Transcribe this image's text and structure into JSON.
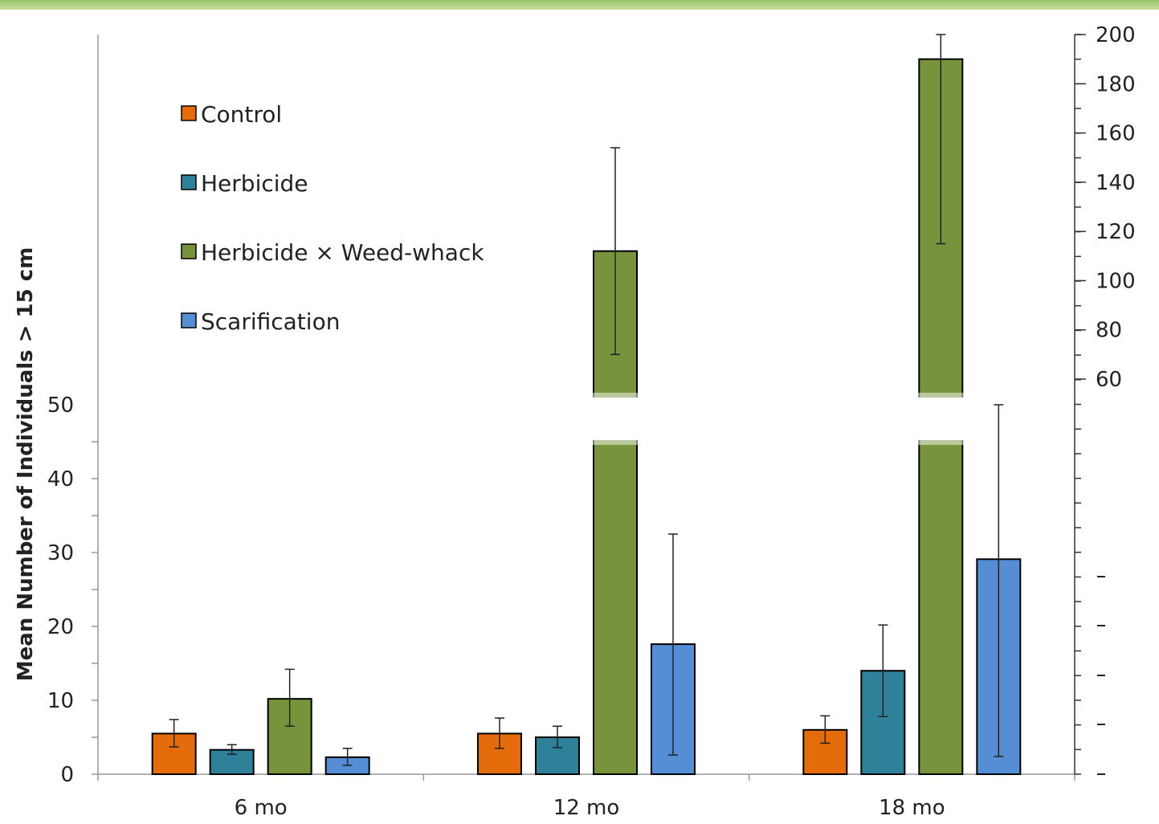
{
  "chart_data": {
    "type": "bar",
    "title": "",
    "ylabel": "Mean Number of Individuals > 15 cm",
    "xlabel": "",
    "categories": [
      "6 mo",
      "12 mo",
      "18 mo"
    ],
    "series": [
      {
        "name": "Control",
        "color": "#e46c0a",
        "values": [
          5.5,
          5.5,
          6.0
        ],
        "err_low": [
          3.7,
          3.5,
          4.2
        ],
        "err_high": [
          7.4,
          7.6,
          7.9
        ]
      },
      {
        "name": "Herbicide",
        "color": "#2e8199",
        "values": [
          3.3,
          5.0,
          14.0
        ],
        "err_low": [
          2.7,
          3.6,
          7.8
        ],
        "err_high": [
          4.0,
          6.5,
          20.2
        ]
      },
      {
        "name": "Herbicide × Weed-whack",
        "color": "#77933c",
        "values": [
          10.2,
          112,
          190
        ],
        "err_low": [
          6.5,
          70,
          115
        ],
        "err_high": [
          14.2,
          154,
          200
        ]
      },
      {
        "name": "Scarification",
        "color": "#558ed5",
        "values": [
          2.3,
          17.6,
          29.1
        ],
        "err_low": [
          1.2,
          2.6,
          2.4
        ],
        "err_high": [
          3.5,
          32.5,
          56
        ]
      }
    ],
    "y_axis_left": {
      "range": [
        0,
        50
      ],
      "ticks": [
        "0",
        "10",
        "20",
        "30",
        "40",
        "50"
      ]
    },
    "y_axis_right": {
      "range": [
        60,
        200
      ],
      "ticks": [
        "60",
        "80",
        "100",
        "120",
        "140",
        "160",
        "180",
        "200"
      ]
    },
    "axis_break": true,
    "legend_position": "top-left",
    "grid": false
  }
}
